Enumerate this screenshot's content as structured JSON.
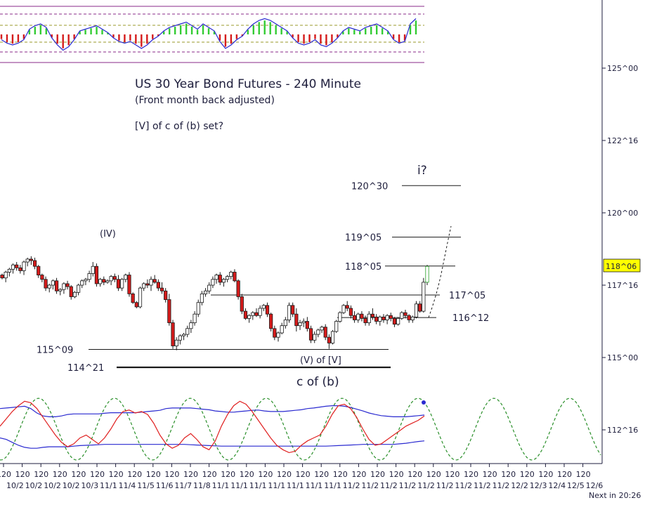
{
  "colors": {
    "up_candle": "#ffffff",
    "down_candle": "#d51b1b",
    "candle_outline": "#1a1a1a",
    "level_line": "#1a1a1a",
    "price_badge_bg": "#ffff00",
    "cycle_dashed": "#2a8f2a",
    "osc_red": "#e02020",
    "osc_blue": "#2a2ad0",
    "histo_red": "#d51b1b",
    "histo_green": "#33cc33",
    "histo_dotted_purple": "#8a2a8a",
    "histo_dotted_olive": "#9a9a2a",
    "histo_frame": "#8a2a8a"
  },
  "header": {
    "title": "US 30 Year Bond Futures - 240 Minute",
    "subtitle": "(Front month back adjusted)",
    "comment": "[V] of c of (b) set?"
  },
  "annotations": {
    "wave_iv": "(IV)",
    "wave_i": "i?",
    "wave_v": "(V) of [V]",
    "c_of_b": "c of (b)"
  },
  "levels": [
    {
      "label": "120^30",
      "value": "120^30"
    },
    {
      "label": "119^05",
      "value": "119^05"
    },
    {
      "label": "118^05",
      "value": "118^05"
    },
    {
      "label": "117^05",
      "value": "117^05"
    },
    {
      "label": "116^12",
      "value": "116^12"
    },
    {
      "label": "115^09",
      "value": "115^09"
    },
    {
      "label": "114^21",
      "value": "114^21"
    }
  ],
  "price_badge": "118^06",
  "footer": {
    "next_bar": "Next in 20:26"
  },
  "chart_data": {
    "type": "candlestick",
    "title": "US 30 Year Bond Futures - 240 Minute",
    "subtitle": "(Front month back adjusted)",
    "y_axis": {
      "ticks": [
        "125^00",
        "122^16",
        "120^00",
        "117^16",
        "115^00",
        "112^16"
      ],
      "tick_values": [
        125.0,
        122.5,
        120.0,
        117.5,
        115.0,
        112.5
      ],
      "range": [
        110.9,
        127.8
      ]
    },
    "x_axis": {
      "interval_label": "120",
      "ticks": [
        "10/2",
        "10/2",
        "10/2",
        "10/2",
        "10/3",
        "11/1",
        "11/4",
        "11/5",
        "11/6",
        "11/7",
        "11/8",
        "11/1",
        "11/1",
        "11/1",
        "11/1",
        "11/1",
        "11/1",
        "11/1",
        "11/2",
        "11/2",
        "11/2",
        "11/2",
        "11/2",
        "11/2",
        "11/2",
        "11/2",
        "11/2",
        "12/2",
        "12/3",
        "12/4",
        "12/5",
        "12/6"
      ]
    },
    "ohlc": [
      [
        117.85,
        117.9,
        117.7,
        117.75
      ],
      [
        117.75,
        118.0,
        117.6,
        117.95
      ],
      [
        117.95,
        118.1,
        117.8,
        118.05
      ],
      [
        118.05,
        118.25,
        117.9,
        118.2
      ],
      [
        118.2,
        118.3,
        118.0,
        118.1
      ],
      [
        118.1,
        118.2,
        117.9,
        118.0
      ],
      [
        118.0,
        118.35,
        117.85,
        118.3
      ],
      [
        118.3,
        118.45,
        118.15,
        118.4
      ],
      [
        118.4,
        118.5,
        118.2,
        118.35
      ],
      [
        118.35,
        118.45,
        118.05,
        118.15
      ],
      [
        118.15,
        118.2,
        117.75,
        117.85
      ],
      [
        117.85,
        117.9,
        117.6,
        117.7
      ],
      [
        117.7,
        117.8,
        117.3,
        117.4
      ],
      [
        117.4,
        117.55,
        117.25,
        117.5
      ],
      [
        117.5,
        117.7,
        117.35,
        117.65
      ],
      [
        117.65,
        117.75,
        117.2,
        117.3
      ],
      [
        117.3,
        117.4,
        117.15,
        117.35
      ],
      [
        117.35,
        117.6,
        117.2,
        117.55
      ],
      [
        117.55,
        117.65,
        117.35,
        117.45
      ],
      [
        117.45,
        117.5,
        117.0,
        117.1
      ],
      [
        117.1,
        117.3,
        117.05,
        117.25
      ],
      [
        117.25,
        117.55,
        117.15,
        117.5
      ],
      [
        117.5,
        117.7,
        117.4,
        117.65
      ],
      [
        117.65,
        117.75,
        117.5,
        117.7
      ],
      [
        117.7,
        118.0,
        117.6,
        117.9
      ],
      [
        117.9,
        118.3,
        117.8,
        118.15
      ],
      [
        118.15,
        118.25,
        117.45,
        117.55
      ],
      [
        117.55,
        117.75,
        117.45,
        117.7
      ],
      [
        117.7,
        117.8,
        117.5,
        117.6
      ],
      [
        117.6,
        117.7,
        117.55,
        117.65
      ],
      [
        117.65,
        117.85,
        117.5,
        117.8
      ],
      [
        117.8,
        117.9,
        117.6,
        117.7
      ],
      [
        117.7,
        117.85,
        117.3,
        117.4
      ],
      [
        117.4,
        117.75,
        117.3,
        117.7
      ],
      [
        117.7,
        117.9,
        117.6,
        117.85
      ],
      [
        117.85,
        117.95,
        117.1,
        117.2
      ],
      [
        117.2,
        117.25,
        116.85,
        116.9
      ],
      [
        116.9,
        116.95,
        116.7,
        116.75
      ],
      [
        116.75,
        117.45,
        116.7,
        117.4
      ],
      [
        117.4,
        117.6,
        117.3,
        117.55
      ],
      [
        117.55,
        117.7,
        117.4,
        117.5
      ],
      [
        117.5,
        117.8,
        117.3,
        117.7
      ],
      [
        117.7,
        117.85,
        117.55,
        117.6
      ],
      [
        117.6,
        117.7,
        117.3,
        117.4
      ],
      [
        117.4,
        117.6,
        117.2,
        117.3
      ],
      [
        117.3,
        117.4,
        116.9,
        117.0
      ],
      [
        117.0,
        117.2,
        116.1,
        116.2
      ],
      [
        116.2,
        116.3,
        115.3,
        115.4
      ],
      [
        115.4,
        115.7,
        115.25,
        115.6
      ],
      [
        115.6,
        115.8,
        115.45,
        115.75
      ],
      [
        115.75,
        115.85,
        115.6,
        115.8
      ],
      [
        115.8,
        116.1,
        115.7,
        116.0
      ],
      [
        116.0,
        116.3,
        115.85,
        116.2
      ],
      [
        116.2,
        116.6,
        116.1,
        116.5
      ],
      [
        116.5,
        117.0,
        116.4,
        116.9
      ],
      [
        116.9,
        117.3,
        116.8,
        117.2
      ],
      [
        117.2,
        117.4,
        117.1,
        117.3
      ],
      [
        117.3,
        117.6,
        117.2,
        117.5
      ],
      [
        117.5,
        117.8,
        117.4,
        117.7
      ],
      [
        117.7,
        117.9,
        117.55,
        117.85
      ],
      [
        117.85,
        117.95,
        117.5,
        117.6
      ],
      [
        117.6,
        117.75,
        117.45,
        117.7
      ],
      [
        117.7,
        117.85,
        117.6,
        117.8
      ],
      [
        117.8,
        118.0,
        117.7,
        117.95
      ],
      [
        117.95,
        118.05,
        117.6,
        117.65
      ],
      [
        117.65,
        117.7,
        117.0,
        117.1
      ],
      [
        117.1,
        117.2,
        116.5,
        116.6
      ],
      [
        116.6,
        116.7,
        116.3,
        116.35
      ],
      [
        116.35,
        116.5,
        116.2,
        116.45
      ],
      [
        116.45,
        116.6,
        116.3,
        116.55
      ],
      [
        116.55,
        116.7,
        116.4,
        116.45
      ],
      [
        116.45,
        116.8,
        116.35,
        116.7
      ],
      [
        116.7,
        116.85,
        116.6,
        116.8
      ],
      [
        116.8,
        116.9,
        116.4,
        116.5
      ],
      [
        116.5,
        116.55,
        115.9,
        116.0
      ],
      [
        116.0,
        116.1,
        115.6,
        115.7
      ],
      [
        115.7,
        115.9,
        115.55,
        115.85
      ],
      [
        115.85,
        116.2,
        115.8,
        116.1
      ],
      [
        116.1,
        116.4,
        116.0,
        116.3
      ],
      [
        116.3,
        116.9,
        116.2,
        116.8
      ],
      [
        116.8,
        116.9,
        116.4,
        116.5
      ],
      [
        116.5,
        116.7,
        115.9,
        116.1
      ],
      [
        116.1,
        116.3,
        115.95,
        116.2
      ],
      [
        116.2,
        116.35,
        116.05,
        116.25
      ],
      [
        116.25,
        116.4,
        115.9,
        116.0
      ],
      [
        116.0,
        116.1,
        115.5,
        115.6
      ],
      [
        115.6,
        115.9,
        115.5,
        115.8
      ],
      [
        115.8,
        116.0,
        115.7,
        115.95
      ],
      [
        115.95,
        116.1,
        115.85,
        116.05
      ],
      [
        116.05,
        116.15,
        115.6,
        115.7
      ],
      [
        115.7,
        115.8,
        115.3,
        115.5
      ],
      [
        115.5,
        115.95,
        115.45,
        115.9
      ],
      [
        115.9,
        116.3,
        115.85,
        116.25
      ],
      [
        116.25,
        116.6,
        116.2,
        116.55
      ],
      [
        116.55,
        116.85,
        116.5,
        116.8
      ],
      [
        116.8,
        116.95,
        116.6,
        116.7
      ],
      [
        116.7,
        116.8,
        116.35,
        116.45
      ],
      [
        116.45,
        116.6,
        116.2,
        116.3
      ],
      [
        116.3,
        116.55,
        116.2,
        116.5
      ],
      [
        116.5,
        116.6,
        116.25,
        116.35
      ],
      [
        116.35,
        116.45,
        116.1,
        116.2
      ],
      [
        116.2,
        116.6,
        116.1,
        116.5
      ],
      [
        116.5,
        116.7,
        116.3,
        116.4
      ],
      [
        116.4,
        116.5,
        116.15,
        116.25
      ],
      [
        116.25,
        116.45,
        116.1,
        116.4
      ],
      [
        116.4,
        116.5,
        116.2,
        116.3
      ],
      [
        116.3,
        116.5,
        116.15,
        116.45
      ],
      [
        116.45,
        116.55,
        116.25,
        116.35
      ],
      [
        116.35,
        116.4,
        116.05,
        116.15
      ],
      [
        116.15,
        116.4,
        116.1,
        116.35
      ],
      [
        116.35,
        116.6,
        116.3,
        116.55
      ],
      [
        116.55,
        116.65,
        116.35,
        116.45
      ],
      [
        116.45,
        116.5,
        116.2,
        116.3
      ],
      [
        116.3,
        116.45,
        116.2,
        116.4
      ],
      [
        116.4,
        116.95,
        116.35,
        116.85
      ],
      [
        116.85,
        116.95,
        116.55,
        116.6
      ],
      [
        116.6,
        117.75,
        116.55,
        117.6
      ],
      [
        117.6,
        118.2,
        117.5,
        118.15
      ]
    ],
    "levels": [
      {
        "label": "120^30",
        "value": 120.94
      },
      {
        "label": "119^05",
        "value": 119.16
      },
      {
        "label": "118^05",
        "value": 118.16
      },
      {
        "label": "117^05",
        "value": 117.16
      },
      {
        "label": "116^12",
        "value": 116.38
      },
      {
        "label": "115^09",
        "value": 115.28
      },
      {
        "label": "114^21",
        "value": 114.66
      }
    ],
    "last_price": "118^06",
    "oscillator": {
      "red": [
        0.1,
        0.35,
        0.6,
        0.8,
        0.95,
        0.9,
        0.7,
        0.4,
        0.1,
        -0.2,
        -0.45,
        -0.6,
        -0.5,
        -0.3,
        -0.2,
        -0.35,
        -0.5,
        -0.3,
        0.0,
        0.35,
        0.6,
        0.65,
        0.55,
        0.6,
        0.5,
        0.2,
        -0.2,
        -0.5,
        -0.65,
        -0.55,
        -0.3,
        -0.15,
        -0.35,
        -0.6,
        -0.7,
        -0.4,
        0.1,
        0.5,
        0.8,
        0.95,
        0.85,
        0.6,
        0.3,
        0.0,
        -0.3,
        -0.55,
        -0.7,
        -0.8,
        -0.75,
        -0.55,
        -0.4,
        -0.3,
        -0.2,
        0.1,
        0.5,
        0.8,
        0.85,
        0.7,
        0.4,
        0.0,
        -0.35,
        -0.55,
        -0.5,
        -0.35,
        -0.2,
        -0.05,
        0.1,
        0.2,
        0.3,
        0.45
      ],
      "blue_upper": [
        0.7,
        0.72,
        0.74,
        0.76,
        0.78,
        0.7,
        0.55,
        0.45,
        0.42,
        0.42,
        0.45,
        0.5,
        0.52,
        0.52,
        0.52,
        0.52,
        0.52,
        0.54,
        0.56,
        0.56,
        0.56,
        0.56,
        0.56,
        0.58,
        0.6,
        0.62,
        0.64,
        0.7,
        0.72,
        0.72,
        0.72,
        0.72,
        0.7,
        0.68,
        0.66,
        0.62,
        0.6,
        0.58,
        0.58,
        0.6,
        0.62,
        0.64,
        0.65,
        0.62,
        0.6,
        0.6,
        0.6,
        0.62,
        0.64,
        0.66,
        0.7,
        0.72,
        0.75,
        0.78,
        0.8,
        0.8,
        0.78,
        0.74,
        0.68,
        0.62,
        0.55,
        0.5,
        0.46,
        0.44,
        0.42,
        0.42,
        0.42,
        0.44,
        0.46,
        0.48
      ],
      "blue_lower": [
        -0.3,
        -0.35,
        -0.45,
        -0.55,
        -0.62,
        -0.65,
        -0.65,
        -0.62,
        -0.6,
        -0.6,
        -0.6,
        -0.6,
        -0.58,
        -0.56,
        -0.55,
        -0.54,
        -0.53,
        -0.52,
        -0.52,
        -0.52,
        -0.52,
        -0.52,
        -0.52,
        -0.52,
        -0.52,
        -0.52,
        -0.52,
        -0.52,
        -0.52,
        -0.52,
        -0.52,
        -0.53,
        -0.54,
        -0.55,
        -0.56,
        -0.57,
        -0.58,
        -0.58,
        -0.58,
        -0.58,
        -0.58,
        -0.58,
        -0.58,
        -0.58,
        -0.58,
        -0.58,
        -0.58,
        -0.58,
        -0.58,
        -0.58,
        -0.58,
        -0.58,
        -0.58,
        -0.58,
        -0.57,
        -0.56,
        -0.55,
        -0.54,
        -0.53,
        -0.52,
        -0.52,
        -0.52,
        -0.52,
        -0.52,
        -0.52,
        -0.5,
        -0.48,
        -0.45,
        -0.42,
        -0.4
      ],
      "cycle_amplitude": 1.0
    },
    "histogram": {
      "values": [
        -0.3,
        -0.5,
        -0.6,
        -0.5,
        -0.3,
        0.3,
        0.5,
        0.6,
        0.4,
        -0.2,
        -0.6,
        -0.9,
        -0.7,
        -0.3,
        0.2,
        0.3,
        0.4,
        0.5,
        0.3,
        0.1,
        -0.2,
        -0.4,
        -0.5,
        -0.4,
        -0.6,
        -0.8,
        -0.6,
        -0.3,
        -0.1,
        0.2,
        0.4,
        0.5,
        0.6,
        0.7,
        0.5,
        0.3,
        0.6,
        0.4,
        0.2,
        -0.4,
        -0.8,
        -0.6,
        -0.3,
        -0.1,
        0.3,
        0.6,
        0.8,
        0.9,
        0.8,
        0.6,
        0.4,
        0.2,
        -0.2,
        -0.5,
        -0.6,
        -0.5,
        -0.3,
        -0.6,
        -0.7,
        -0.5,
        -0.2,
        0.2,
        0.4,
        0.3,
        0.2,
        0.4,
        0.5,
        0.6,
        0.4,
        0.2,
        -0.3,
        -0.5,
        -0.4,
        0.6,
        0.9
      ]
    }
  }
}
